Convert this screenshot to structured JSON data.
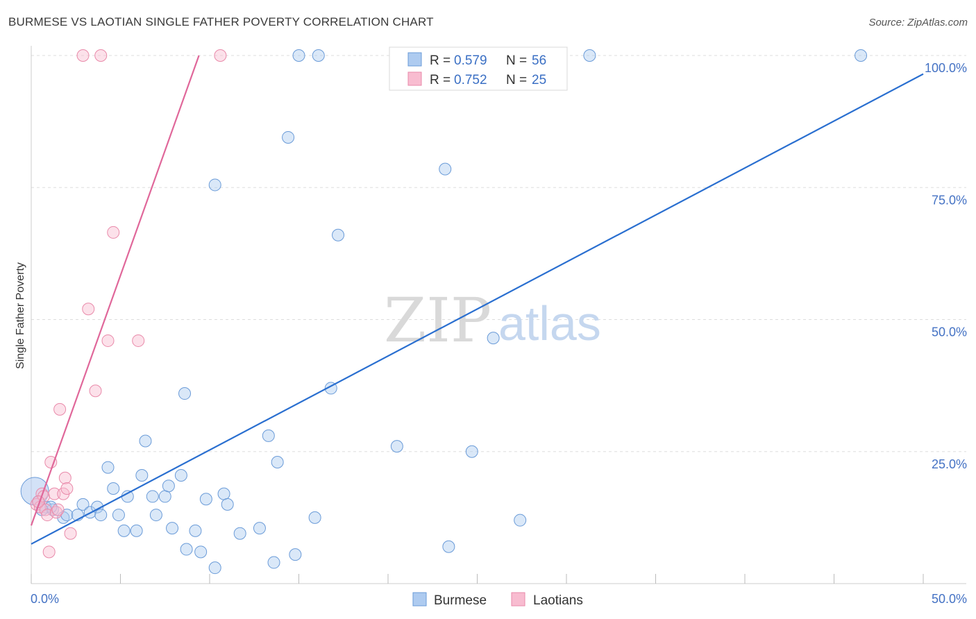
{
  "title": "BURMESE VS LAOTIAN SINGLE FATHER POVERTY CORRELATION CHART",
  "source": "Source: ZipAtlas.com",
  "watermark": {
    "zip": "ZIP",
    "atlas": "atlas"
  },
  "colors": {
    "burmese_fill": "#aecbf0",
    "burmese_stroke": "#6a9bd8",
    "burmese_line": "#2a6fd0",
    "laotian_fill": "#f8bcd0",
    "laotian_stroke": "#e98aaa",
    "laotian_line": "#e0679a",
    "grid": "#dddddd",
    "tick_text": "#4472c4"
  },
  "legend": {
    "burmese": {
      "r_label": "R =",
      "r_value": "0.579",
      "n_label": "N =",
      "n_value": "56"
    },
    "laotian": {
      "r_label": "R =",
      "r_value": "0.752",
      "n_label": "N =",
      "n_value": "25"
    }
  },
  "chart_data": {
    "type": "scatter",
    "title": "BURMESE VS LAOTIAN SINGLE FATHER POVERTY CORRELATION CHART",
    "xlabel": "",
    "ylabel": "Single Father Poverty",
    "xlim": [
      0,
      50
    ],
    "ylim": [
      0,
      100
    ],
    "x_tick_labels": [
      "0.0%",
      "50.0%"
    ],
    "y_tick_labels": [
      "100.0%",
      "75.0%",
      "50.0%",
      "25.0%"
    ],
    "y_ticks": [
      100,
      75,
      50,
      25
    ],
    "series": [
      {
        "name": "Burmese",
        "points": [
          [
            0.2,
            17.5,
            1
          ],
          [
            0.4,
            15.5,
            0
          ],
          [
            0.8,
            14.5,
            0
          ],
          [
            1.2,
            14.0,
            0
          ],
          [
            1.8,
            12.5,
            0
          ],
          [
            2.0,
            13.0,
            0
          ],
          [
            2.6,
            13.0,
            0
          ],
          [
            2.9,
            15.0,
            0
          ],
          [
            3.3,
            13.5,
            0
          ],
          [
            3.7,
            14.5,
            0
          ],
          [
            3.9,
            13.0,
            0
          ],
          [
            4.3,
            22.0,
            0
          ],
          [
            4.6,
            18.0,
            0
          ],
          [
            4.9,
            13.0,
            0
          ],
          [
            5.2,
            10.0,
            0
          ],
          [
            5.4,
            16.5,
            0
          ],
          [
            5.9,
            10.0,
            0
          ],
          [
            6.2,
            20.5,
            0
          ],
          [
            6.4,
            27.0,
            0
          ],
          [
            6.8,
            16.5,
            0
          ],
          [
            7.0,
            13.0,
            0
          ],
          [
            7.5,
            16.5,
            0
          ],
          [
            7.7,
            18.5,
            0
          ],
          [
            7.9,
            10.5,
            0
          ],
          [
            8.4,
            20.5,
            0
          ],
          [
            8.6,
            36.0,
            0
          ],
          [
            8.7,
            6.5,
            0
          ],
          [
            9.2,
            10.0,
            0
          ],
          [
            9.5,
            6.0,
            0
          ],
          [
            9.8,
            16.0,
            0
          ],
          [
            10.3,
            3.0,
            0
          ],
          [
            10.3,
            75.5,
            0
          ],
          [
            10.8,
            17.0,
            0
          ],
          [
            11.0,
            15.0,
            0
          ],
          [
            11.7,
            9.5,
            0
          ],
          [
            12.8,
            10.5,
            0
          ],
          [
            13.3,
            28.0,
            0
          ],
          [
            13.6,
            4.0,
            0
          ],
          [
            13.8,
            23.0,
            0
          ],
          [
            14.4,
            84.5,
            0
          ],
          [
            14.8,
            5.5,
            0
          ],
          [
            15.0,
            100.0,
            0
          ],
          [
            15.9,
            12.5,
            0
          ],
          [
            16.1,
            100.0,
            0
          ],
          [
            16.8,
            37.0,
            0
          ],
          [
            17.2,
            66.0,
            0
          ],
          [
            20.5,
            26.0,
            0
          ],
          [
            23.2,
            78.5,
            0
          ],
          [
            23.4,
            7.0,
            0
          ],
          [
            24.7,
            25.0,
            0
          ],
          [
            25.9,
            46.5,
            0
          ],
          [
            27.4,
            12.0,
            0
          ],
          [
            31.3,
            100.0,
            0
          ],
          [
            46.5,
            100.0,
            0
          ],
          [
            1.1,
            14.5,
            0
          ],
          [
            0.6,
            14.0,
            0
          ]
        ],
        "trend": {
          "x1": 0,
          "y1": 7.5,
          "x2": 50,
          "y2": 96.5
        }
      },
      {
        "name": "Laotians",
        "points": [
          [
            0.3,
            15.0,
            0
          ],
          [
            0.5,
            14.5,
            0
          ],
          [
            0.6,
            17.0,
            0
          ],
          [
            0.7,
            16.5,
            0
          ],
          [
            0.8,
            14.0,
            0
          ],
          [
            0.9,
            13.0,
            0
          ],
          [
            1.0,
            6.0,
            0
          ],
          [
            1.1,
            23.0,
            0
          ],
          [
            1.3,
            17.0,
            0
          ],
          [
            1.4,
            13.5,
            0
          ],
          [
            1.6,
            33.0,
            0
          ],
          [
            1.8,
            17.0,
            0
          ],
          [
            1.9,
            20.0,
            0
          ],
          [
            2.0,
            18.0,
            0
          ],
          [
            2.2,
            9.5,
            0
          ],
          [
            2.9,
            100.0,
            0
          ],
          [
            3.2,
            52.0,
            0
          ],
          [
            3.6,
            36.5,
            0
          ],
          [
            3.9,
            100.0,
            0
          ],
          [
            4.3,
            46.0,
            0
          ],
          [
            4.6,
            66.5,
            0
          ],
          [
            6.0,
            46.0,
            0
          ],
          [
            10.6,
            100.0,
            0
          ],
          [
            0.4,
            15.5,
            0
          ],
          [
            1.5,
            14.0,
            0
          ]
        ],
        "trend": {
          "x1": 0,
          "y1": 11.0,
          "x2": 9.4,
          "y2": 100.0
        }
      }
    ],
    "bottom_legend": [
      "Burmese",
      "Laotians"
    ]
  }
}
